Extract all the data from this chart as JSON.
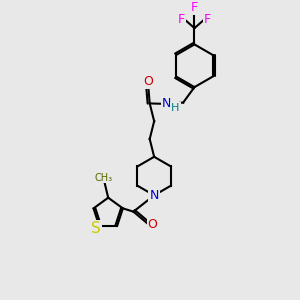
{
  "bg_color": "#e8e8e8",
  "atom_colors": {
    "C": "#000000",
    "N": "#0000cc",
    "O": "#cc0000",
    "S": "#cccc00",
    "F": "#ff00ff",
    "H": "#008080",
    "methyl": "#556600"
  },
  "font_size_atoms": 9,
  "line_color": "#000000",
  "line_width": 1.5
}
